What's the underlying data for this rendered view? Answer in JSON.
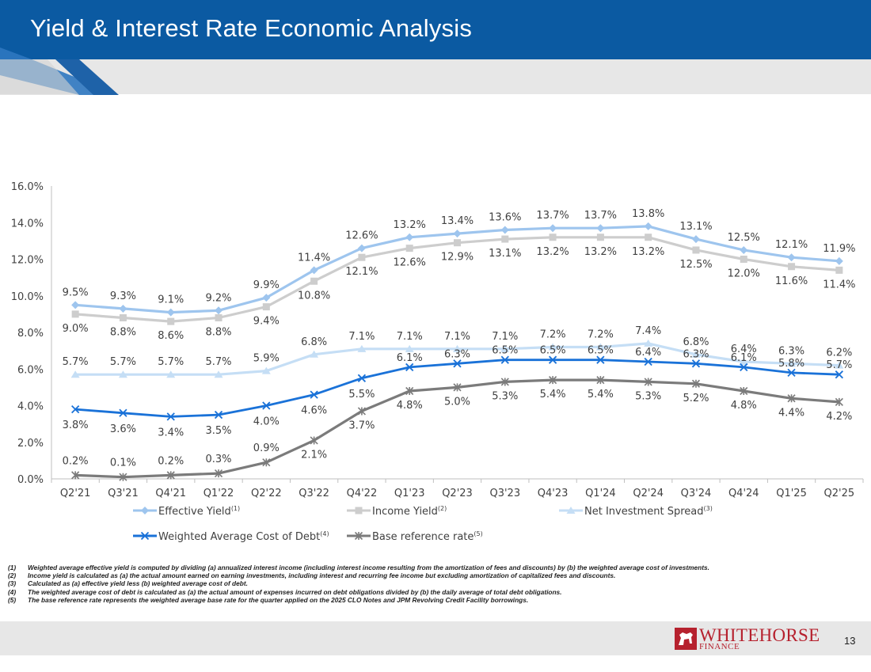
{
  "header": {
    "title": "Yield & Interest Rate Economic Analysis"
  },
  "chart_data": {
    "type": "line",
    "categories": [
      "Q2'21",
      "Q3'21",
      "Q4'21",
      "Q1'22",
      "Q2'22",
      "Q3'22",
      "Q4'22",
      "Q1'23",
      "Q2'23",
      "Q3'23",
      "Q4'23",
      "Q1'24",
      "Q2'24",
      "Q3'24",
      "Q4'24",
      "Q1'25",
      "Q2'25"
    ],
    "ylim": [
      0,
      16
    ],
    "yticks": [
      "0.0%",
      "2.0%",
      "4.0%",
      "6.0%",
      "8.0%",
      "10.0%",
      "12.0%",
      "14.0%",
      "16.0%"
    ],
    "series": [
      {
        "name": "Effective Yield",
        "note": "(1)",
        "color": "#9ec5ee",
        "marker": "diamond",
        "label_pos": "above",
        "values": [
          9.5,
          9.3,
          9.1,
          9.2,
          9.9,
          11.4,
          12.6,
          13.2,
          13.4,
          13.6,
          13.7,
          13.7,
          13.8,
          13.1,
          12.5,
          12.1,
          11.9
        ],
        "labels": [
          "9.5%",
          "9.3%",
          "9.1%",
          "9.2%",
          "9.9%",
          "11.4%",
          "12.6%",
          "13.2%",
          "13.4%",
          "13.6%",
          "13.7%",
          "13.7%",
          "13.8%",
          "13.1%",
          "12.5%",
          "12.1%",
          "11.9%"
        ]
      },
      {
        "name": "Income Yield",
        "note": "(2)",
        "color": "#cdcdcd",
        "marker": "square",
        "label_pos": "below",
        "values": [
          9.0,
          8.8,
          8.6,
          8.8,
          9.4,
          10.8,
          12.1,
          12.6,
          12.9,
          13.1,
          13.2,
          13.2,
          13.2,
          12.5,
          12.0,
          11.6,
          11.4
        ],
        "labels": [
          "9.0%",
          "8.8%",
          "8.6%",
          "8.8%",
          "9.4%",
          "10.8%",
          "12.1%",
          "12.6%",
          "12.9%",
          "13.1%",
          "13.2%",
          "13.2%",
          "13.2%",
          "12.5%",
          "12.0%",
          "11.6%",
          "11.4%"
        ]
      },
      {
        "name": "Net Investment Spread",
        "note": "(3)",
        "color": "#c5def5",
        "marker": "triangle",
        "label_pos": "above",
        "values": [
          5.7,
          5.7,
          5.7,
          5.7,
          5.9,
          6.8,
          7.1,
          7.1,
          7.1,
          7.1,
          7.2,
          7.2,
          7.4,
          6.8,
          6.4,
          6.3,
          6.2
        ],
        "labels": [
          "5.7%",
          "5.7%",
          "5.7%",
          "5.7%",
          "5.9%",
          "6.8%",
          "7.1%",
          "7.1%",
          "7.1%",
          "7.1%",
          "7.2%",
          "7.2%",
          "7.4%",
          "6.8%",
          "6.4%",
          "6.3%",
          "6.2%"
        ]
      },
      {
        "name": "Weighted Average Cost of Debt",
        "note": "(4)",
        "color": "#1a72d8",
        "marker": "x",
        "label_pos": "mixed",
        "values": [
          3.8,
          3.6,
          3.4,
          3.5,
          4.0,
          4.6,
          5.5,
          6.1,
          6.3,
          6.5,
          6.5,
          6.5,
          6.4,
          6.3,
          6.1,
          5.8,
          5.7
        ],
        "labels": [
          "3.8%",
          "3.6%",
          "3.4%",
          "3.5%",
          "4.0%",
          "4.6%",
          "5.5%",
          "6.1%",
          "6.3%",
          "6.5%",
          "6.5%",
          "6.5%",
          "6.4%",
          "6.3%",
          "6.1%",
          "5.8%",
          "5.7%"
        ]
      },
      {
        "name": "Base reference rate",
        "note": "(5)",
        "color": "#7b7b7b",
        "marker": "star",
        "label_pos": "mixed",
        "values": [
          0.2,
          0.1,
          0.2,
          0.3,
          0.9,
          2.1,
          3.7,
          4.8,
          5.0,
          5.3,
          5.4,
          5.4,
          5.3,
          5.2,
          4.8,
          4.4,
          4.2
        ],
        "labels": [
          "0.2%",
          "0.1%",
          "0.2%",
          "0.3%",
          "0.9%",
          "2.1%",
          "3.7%",
          "4.8%",
          "5.0%",
          "5.3%",
          "5.4%",
          "5.4%",
          "5.3%",
          "5.2%",
          "4.8%",
          "4.4%",
          "4.2%"
        ]
      }
    ]
  },
  "footnotes": [
    {
      "num": "(1)",
      "text": "Weighted average effective yield is computed by dividing (a) annualized interest income (including interest income resulting from the amortization of fees and discounts) by (b) the weighted average cost of investments."
    },
    {
      "num": "(2)",
      "text": "Income yield is calculated as (a) the actual amount earned on earning investments, including interest and recurring fee income but excluding amortization of capitalized fees and discounts."
    },
    {
      "num": "(3)",
      "text": "Calculated as (a) effective yield less (b) weighted average cost of debt."
    },
    {
      "num": "(4)",
      "text": "The weighted average cost of debt is calculated as (a) the actual amount of expenses incurred on debt obligations divided by (b) the daily average of total debt obligations."
    },
    {
      "num": "(5)",
      "text": "The base reference rate represents the weighted average base rate for the quarter applied on the 2025 CLO Notes and JPM Revolving Credit Facility borrowings."
    }
  ],
  "footer": {
    "logo_main": "WHITEHORSE",
    "logo_sub": "FINANCE",
    "page_number": "13"
  }
}
